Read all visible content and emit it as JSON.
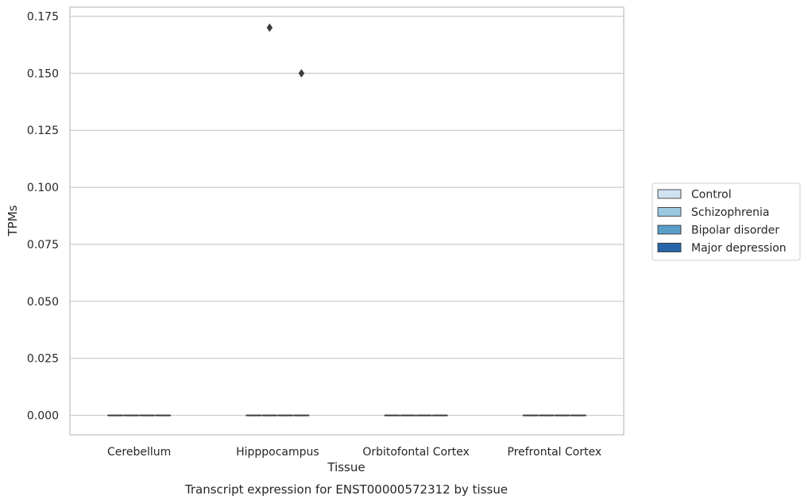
{
  "chart_data": {
    "type": "box",
    "caption": "Transcript expression for ENST00000572312 by tissue",
    "xlabel": "Tissue",
    "ylabel": "TPMs",
    "ylim": [
      -0.0085,
      0.179
    ],
    "yticks": [
      0.0,
      0.025,
      0.05,
      0.075,
      0.1,
      0.125,
      0.15,
      0.175
    ],
    "ytick_labels": [
      "0.000",
      "0.025",
      "0.050",
      "0.075",
      "0.100",
      "0.125",
      "0.150",
      "0.175"
    ],
    "grid": true,
    "legend_position": "right",
    "categories": [
      "Cerebellum",
      "Hipppocampus",
      "Orbitofontal Cortex",
      "Prefrontal Cortex"
    ],
    "series": [
      {
        "name": "Control",
        "color": "#d0e1f2",
        "boxes": [
          {
            "q1": 0,
            "median": 0,
            "q3": 0,
            "whisker_low": 0,
            "whisker_high": 0,
            "outliers": []
          },
          {
            "q1": 0,
            "median": 0,
            "q3": 0,
            "whisker_low": 0,
            "whisker_high": 0,
            "outliers": []
          },
          {
            "q1": 0,
            "median": 0,
            "q3": 0,
            "whisker_low": 0,
            "whisker_high": 0,
            "outliers": []
          },
          {
            "q1": 0,
            "median": 0,
            "q3": 0,
            "whisker_low": 0,
            "whisker_high": 0,
            "outliers": []
          }
        ]
      },
      {
        "name": "Schizophrenia",
        "color": "#9ac8e0",
        "boxes": [
          {
            "q1": 0,
            "median": 0,
            "q3": 0,
            "whisker_low": 0,
            "whisker_high": 0,
            "outliers": []
          },
          {
            "q1": 0,
            "median": 0,
            "q3": 0,
            "whisker_low": 0,
            "whisker_high": 0,
            "outliers": [
              0.17
            ]
          },
          {
            "q1": 0,
            "median": 0,
            "q3": 0,
            "whisker_low": 0,
            "whisker_high": 0,
            "outliers": []
          },
          {
            "q1": 0,
            "median": 0,
            "q3": 0,
            "whisker_low": 0,
            "whisker_high": 0,
            "outliers": []
          }
        ]
      },
      {
        "name": "Bipolar disorder",
        "color": "#5a9ec9",
        "boxes": [
          {
            "q1": 0,
            "median": 0,
            "q3": 0,
            "whisker_low": 0,
            "whisker_high": 0,
            "outliers": []
          },
          {
            "q1": 0,
            "median": 0,
            "q3": 0,
            "whisker_low": 0,
            "whisker_high": 0,
            "outliers": []
          },
          {
            "q1": 0,
            "median": 0,
            "q3": 0,
            "whisker_low": 0,
            "whisker_high": 0,
            "outliers": []
          },
          {
            "q1": 0,
            "median": 0,
            "q3": 0,
            "whisker_low": 0,
            "whisker_high": 0,
            "outliers": []
          }
        ]
      },
      {
        "name": "Major depression",
        "color": "#2666a8",
        "boxes": [
          {
            "q1": 0,
            "median": 0,
            "q3": 0,
            "whisker_low": 0,
            "whisker_high": 0,
            "outliers": []
          },
          {
            "q1": 0,
            "median": 0,
            "q3": 0,
            "whisker_low": 0,
            "whisker_high": 0,
            "outliers": [
              0.15
            ]
          },
          {
            "q1": 0,
            "median": 0,
            "q3": 0,
            "whisker_low": 0,
            "whisker_high": 0,
            "outliers": []
          },
          {
            "q1": 0,
            "median": 0,
            "q3": 0,
            "whisker_low": 0,
            "whisker_high": 0,
            "outliers": []
          }
        ]
      }
    ]
  }
}
